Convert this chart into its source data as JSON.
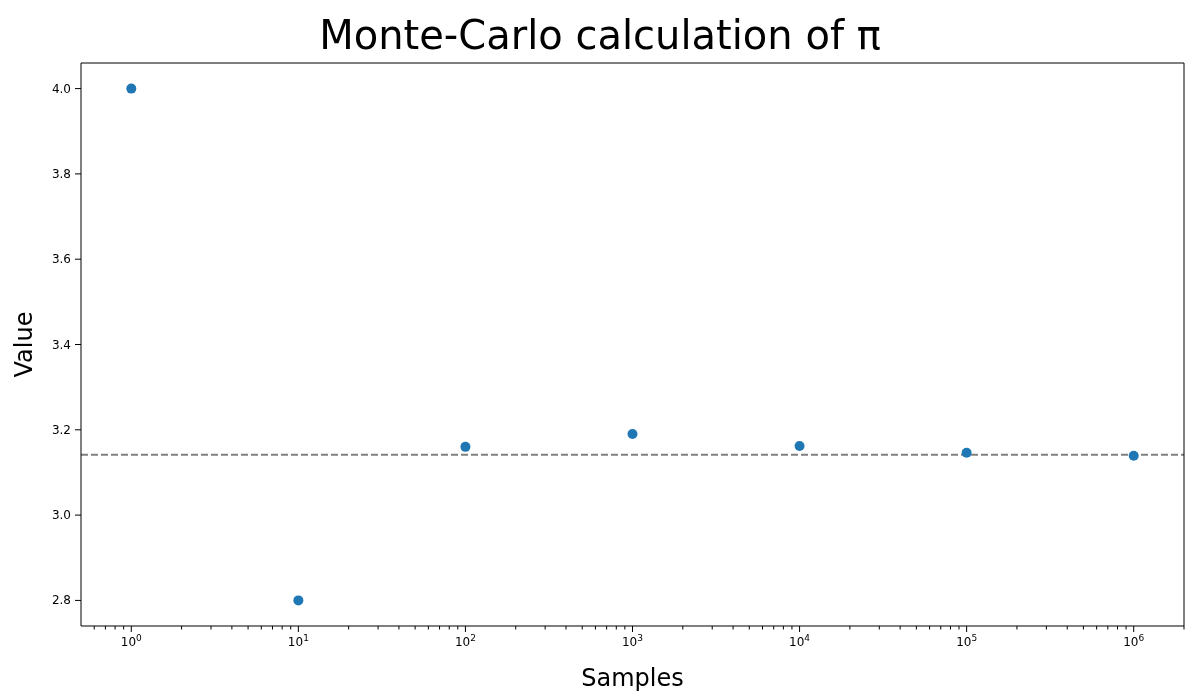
{
  "chart_data": {
    "type": "scatter",
    "title": "Monte-Carlo calculation of π",
    "xlabel": "Samples",
    "ylabel": "Value",
    "x": [
      1,
      10,
      100,
      1000,
      10000,
      100000,
      1000000
    ],
    "values": [
      4.0,
      2.8,
      3.16,
      3.19,
      3.162,
      3.146,
      3.139
    ],
    "color": "#1f77b4",
    "marker": "circle",
    "log": "x",
    "grid": false,
    "legend": false,
    "xlim": [
      0.5,
      2000000
    ],
    "ylim": [
      2.74,
      4.06
    ],
    "xticks": [
      {
        "value": 0.6,
        "label": null
      },
      {
        "value": 0.7,
        "label": null
      },
      {
        "value": 0.8,
        "label": null
      },
      {
        "value": 0.9,
        "label": null
      },
      {
        "value": 1,
        "label": "10$^{0}$"
      },
      {
        "value": 2,
        "label": null
      },
      {
        "value": 3,
        "label": null
      },
      {
        "value": 4,
        "label": null
      },
      {
        "value": 5,
        "label": null
      },
      {
        "value": 6,
        "label": null
      },
      {
        "value": 7,
        "label": null
      },
      {
        "value": 8,
        "label": null
      },
      {
        "value": 9,
        "label": null
      },
      {
        "value": 10,
        "label": "10$^{1}$"
      },
      {
        "value": 20,
        "label": null
      },
      {
        "value": 30,
        "label": null
      },
      {
        "value": 40,
        "label": null
      },
      {
        "value": 50,
        "label": null
      },
      {
        "value": 60,
        "label": null
      },
      {
        "value": 70,
        "label": null
      },
      {
        "value": 80,
        "label": null
      },
      {
        "value": 90,
        "label": null
      },
      {
        "value": 100,
        "label": "10$^{2}$"
      },
      {
        "value": 200,
        "label": null
      },
      {
        "value": 300,
        "label": null
      },
      {
        "value": 400,
        "label": null
      },
      {
        "value": 500,
        "label": null
      },
      {
        "value": 600,
        "label": null
      },
      {
        "value": 700,
        "label": null
      },
      {
        "value": 800,
        "label": null
      },
      {
        "value": 900,
        "label": null
      },
      {
        "value": 1000,
        "label": "10$^{3}$"
      },
      {
        "value": 2000,
        "label": null
      },
      {
        "value": 3000,
        "label": null
      },
      {
        "value": 4000,
        "label": null
      },
      {
        "value": 5000,
        "label": null
      },
      {
        "value": 6000,
        "label": null
      },
      {
        "value": 7000,
        "label": null
      },
      {
        "value": 8000,
        "label": null
      },
      {
        "value": 9000,
        "label": null
      },
      {
        "value": 10000,
        "label": "10$^{4}$"
      },
      {
        "value": 20000,
        "label": null
      },
      {
        "value": 30000,
        "label": null
      },
      {
        "value": 40000,
        "label": null
      },
      {
        "value": 50000,
        "label": null
      },
      {
        "value": 60000,
        "label": null
      },
      {
        "value": 70000,
        "label": null
      },
      {
        "value": 80000,
        "label": null
      },
      {
        "value": 90000,
        "label": null
      },
      {
        "value": 100000,
        "label": "10$^{5}$"
      },
      {
        "value": 200000,
        "label": null
      },
      {
        "value": 300000,
        "label": null
      },
      {
        "value": 400000,
        "label": null
      },
      {
        "value": 500000,
        "label": null
      },
      {
        "value": 600000,
        "label": null
      },
      {
        "value": 700000,
        "label": null
      },
      {
        "value": 800000,
        "label": null
      },
      {
        "value": 900000,
        "label": null
      },
      {
        "value": 1000000,
        "label": "10$^{6}$"
      },
      {
        "value": 2000000,
        "label": null
      }
    ],
    "yticks": [
      2.8,
      {
        "value": 3,
        "label": "3.0"
      },
      3.2,
      3.4,
      3.6,
      3.8,
      {
        "value": 4,
        "label": "4.0"
      }
    ],
    "ref_lines": [
      {
        "axis": "y",
        "value": 3.1416,
        "color": "#808080",
        "line_style": "dashed"
      }
    ]
  }
}
